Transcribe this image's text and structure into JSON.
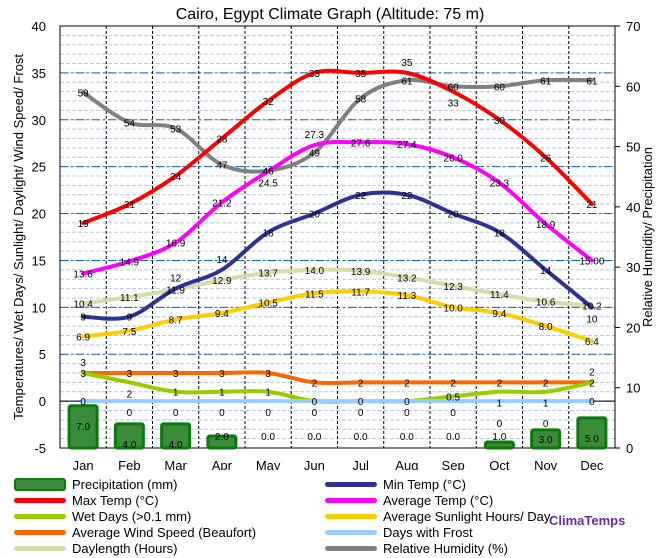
{
  "chart_data": {
    "type": "line",
    "title": "Cairo, Egypt Climate Graph (Altitude: 75 m)",
    "ylabel_left": "Temperatures/ Wet Days/ Sunlight/ Daylight/ Wind Speed/ Frost",
    "ylabel_right": "Relative Humidity/ Precipitation",
    "ylim_left": [
      -5,
      40
    ],
    "ylim_right": [
      0,
      70
    ],
    "yticks_left": [
      "-5",
      "0",
      "5",
      "10",
      "15",
      "20",
      "25",
      "30",
      "35",
      "40"
    ],
    "yticks_right": [
      "0",
      "10",
      "20",
      "30",
      "40",
      "50",
      "60",
      "70"
    ],
    "categories": [
      "Jan",
      "Feb",
      "Mar",
      "Apr",
      "May",
      "Jun",
      "Jul",
      "Aug",
      "Sep",
      "Oct",
      "Nov",
      "Dec"
    ],
    "series": [
      {
        "name": "Precipitation (mm)",
        "type": "bar",
        "axis": "right",
        "color": "#2e8b2e",
        "values": [
          7.0,
          4.0,
          4.0,
          2.0,
          0.0,
          0.0,
          0.0,
          0.0,
          0.0,
          1.0,
          3.0,
          5.0
        ],
        "labels": [
          "7.0",
          "4.0",
          "4.0",
          "2.0",
          "0.0",
          "0.0",
          "0.0",
          "0.0",
          "0.0",
          "1.0",
          "3.0",
          "5.0"
        ]
      },
      {
        "name": "Min Temp (°C)",
        "axis": "left",
        "color": "#2e3192",
        "values": [
          9,
          9,
          12,
          14,
          18,
          20,
          22,
          22,
          20,
          18,
          14,
          10
        ],
        "labels": [
          "9",
          "9",
          "12",
          "14",
          "18",
          "20",
          "22",
          "22",
          "20",
          "18",
          "14",
          "10"
        ]
      },
      {
        "name": "Max Temp (°C)",
        "axis": "left",
        "color": "#ff0000",
        "values": [
          19,
          21,
          24,
          28,
          32,
          35,
          35,
          35,
          33,
          30,
          26,
          21
        ],
        "labels": [
          "19",
          "21",
          "24",
          "28",
          "32",
          "35",
          "35",
          "35",
          "33",
          "30",
          "26",
          "21"
        ]
      },
      {
        "name": "Average Temp (°C)",
        "axis": "left",
        "color": "#ff00ff",
        "values": [
          13.6,
          14.9,
          16.9,
          21.2,
          24.5,
          27.3,
          27.6,
          27.4,
          26.0,
          23.3,
          18.9,
          15.0
        ],
        "labels": [
          "13.6",
          "14.9",
          "16.9",
          "21.2",
          "24.5",
          "27.3",
          "27.6",
          "27.4",
          "26.0",
          "23.3",
          "18.9",
          "15.00"
        ]
      },
      {
        "name": "Wet Days (>0.1 mm)",
        "axis": "left",
        "color": "#99cc00",
        "values": [
          3,
          2,
          1,
          1,
          1,
          0,
          0,
          0,
          0.5,
          1,
          1,
          2
        ],
        "labels": [
          "3",
          "2",
          "1",
          "1",
          "1",
          "0",
          "0",
          "0",
          "0.5",
          "1",
          "1",
          "2"
        ]
      },
      {
        "name": "Average Sunlight Hours/ Day",
        "axis": "left",
        "color": "#ffcc00",
        "values": [
          6.9,
          7.5,
          8.7,
          9.4,
          10.5,
          11.5,
          11.7,
          11.3,
          10.0,
          9.4,
          8.0,
          6.4
        ],
        "labels": [
          "6.9",
          "7.5",
          "8.7",
          "9.4",
          "10.5",
          "11.5",
          "11.7",
          "11.3",
          "10.0",
          "9.4",
          "8.0",
          "6.4"
        ]
      },
      {
        "name": "Average Wind Speed (Beaufort)",
        "axis": "left",
        "color": "#ff6600",
        "values": [
          3,
          3,
          3,
          3,
          3,
          2,
          2,
          2,
          2,
          2,
          2,
          2
        ],
        "labels": [
          "3",
          "3",
          "3",
          "3",
          "3",
          "2",
          "2",
          "2",
          "2",
          "2",
          "2",
          "2"
        ]
      },
      {
        "name": "Days with Frost",
        "axis": "left",
        "color": "#99ccff",
        "values": [
          0,
          0,
          0,
          0,
          0,
          0,
          0,
          0,
          0,
          0,
          0,
          0
        ],
        "labels": [
          "0",
          "0",
          "0",
          "0",
          "0",
          "0",
          "0",
          "0",
          "0",
          "0",
          "0",
          "0"
        ]
      },
      {
        "name": "Daylength (Hours)",
        "axis": "left",
        "color": "#d6dcaa",
        "values": [
          10.4,
          11.1,
          11.9,
          12.9,
          13.7,
          14.0,
          13.9,
          13.2,
          12.3,
          11.4,
          10.6,
          10.2
        ],
        "labels": [
          "10.4",
          "11.1",
          "11.9",
          "12.9",
          "13.7",
          "14.0",
          "13.9",
          "13.2",
          "12.3",
          "11.4",
          "10.6",
          "10.2"
        ]
      },
      {
        "name": "Relative Humidity (%)",
        "axis": "right",
        "color": "#808080",
        "values": [
          59,
          54,
          53,
          47,
          46,
          49,
          58,
          61,
          60,
          60,
          61,
          61
        ],
        "labels": [
          "59",
          "54",
          "53",
          "47",
          "46",
          "49",
          "58",
          "61",
          "60",
          "60",
          "61",
          "61"
        ]
      }
    ],
    "legend_order": [
      0,
      1,
      2,
      3,
      4,
      5,
      6,
      7,
      8,
      9
    ],
    "brand": "ClimaTemps"
  }
}
